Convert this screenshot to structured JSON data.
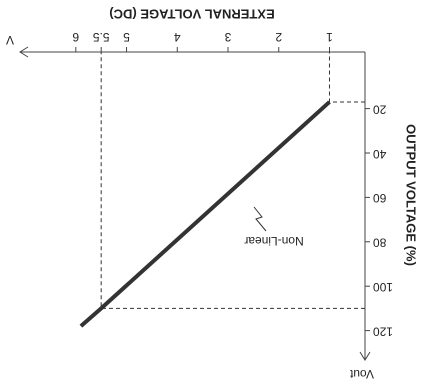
{
  "chart_data": {
    "type": "line",
    "x_label": "EXTERNAL VOLTAGE (DC)",
    "y_label": "OUTPUT VOLTAGE (%)",
    "x_axis_end_label": "V",
    "y_axis_end_label": "Vout",
    "annotation": "Non-Linear",
    "x": [
      1,
      5.5,
      5.9
    ],
    "values": [
      17,
      110,
      118
    ],
    "color": "#333333",
    "dashed_guides": true,
    "xlim": [
      0.3,
      7.1
    ],
    "ylim": [
      -5.5,
      131
    ],
    "xticks": [
      1,
      2,
      3,
      4,
      5,
      5.5,
      6
    ],
    "yticks": [
      20,
      40,
      60,
      80,
      100,
      120
    ],
    "grid": false
  }
}
